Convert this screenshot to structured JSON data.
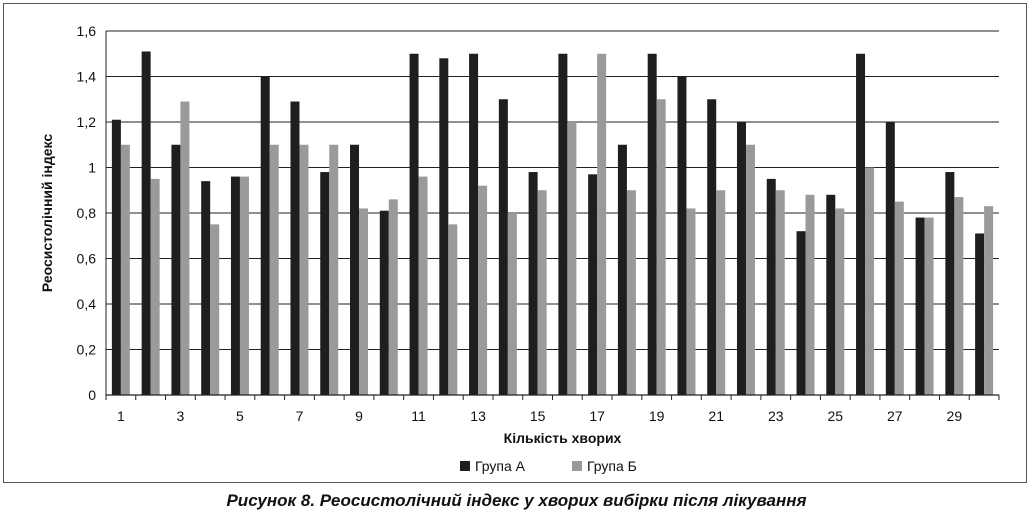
{
  "caption": "Рисунок 8. Реосистолічний індекс у хворих вибірки після лікування",
  "chart_data": {
    "type": "bar",
    "xlabel": "Кількість хворих",
    "ylabel": "Реосистолічний індекс",
    "ylim": [
      0,
      1.6
    ],
    "y_ticks": [
      "0",
      "0,2",
      "0,4",
      "0,6",
      "0,8",
      "1",
      "1,2",
      "1,4",
      "1,6"
    ],
    "grid": true,
    "legend_position": "bottom",
    "categories": [
      "1",
      "2",
      "3",
      "4",
      "5",
      "6",
      "7",
      "8",
      "9",
      "10",
      "11",
      "12",
      "13",
      "14",
      "15",
      "16",
      "17",
      "18",
      "19",
      "20",
      "21",
      "22",
      "23",
      "24",
      "25",
      "26",
      "27",
      "28",
      "29",
      "30"
    ],
    "x_tick_labels": [
      "1",
      "3",
      "5",
      "7",
      "9",
      "11",
      "13",
      "15",
      "17",
      "19",
      "21",
      "23",
      "25",
      "27",
      "29"
    ],
    "series": [
      {
        "name": "Група А",
        "color": "#1e1e1e",
        "values": [
          1.21,
          1.51,
          1.1,
          0.94,
          0.96,
          1.4,
          1.29,
          0.98,
          1.1,
          0.81,
          1.5,
          1.48,
          1.5,
          1.3,
          0.98,
          1.5,
          0.97,
          1.1,
          1.5,
          1.4,
          1.3,
          1.2,
          0.95,
          0.72,
          0.88,
          1.5,
          1.2,
          0.78,
          0.98,
          0.71
        ]
      },
      {
        "name": "Група Б",
        "color": "#9a9a9a",
        "values": [
          1.1,
          0.95,
          1.29,
          0.75,
          0.96,
          1.1,
          1.1,
          1.1,
          0.82,
          0.86,
          0.96,
          0.75,
          0.92,
          0.8,
          0.9,
          1.2,
          1.5,
          0.9,
          1.3,
          0.82,
          0.9,
          1.1,
          0.9,
          0.88,
          0.82,
          1.0,
          0.85,
          0.78,
          0.87,
          0.83
        ]
      }
    ]
  }
}
